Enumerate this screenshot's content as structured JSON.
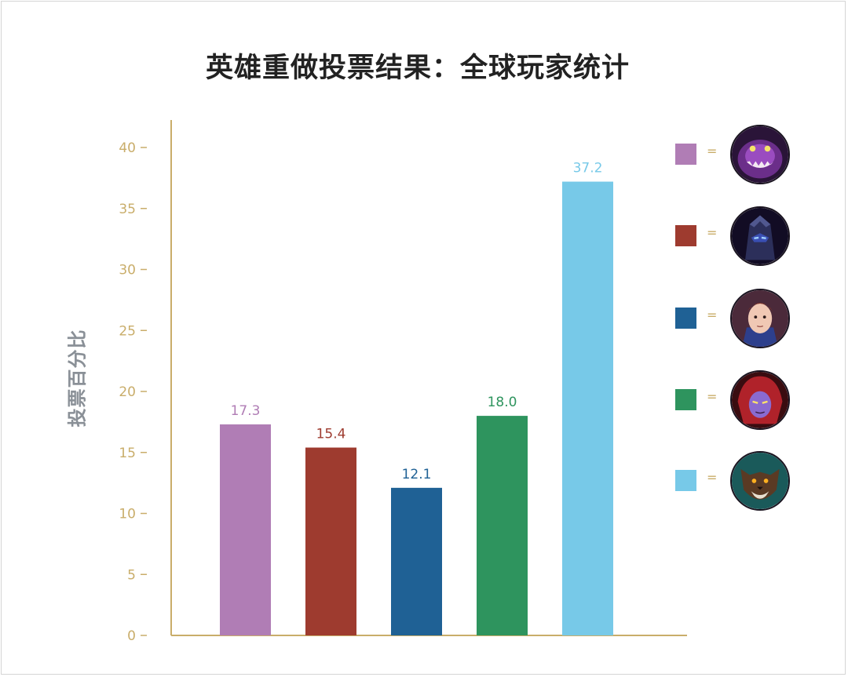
{
  "chart_data": {
    "type": "bar",
    "title": "英雄重做投票结果：全球玩家统计",
    "ylabel": "投票百分比",
    "xlabel": "",
    "ylim": [
      0,
      40
    ],
    "yticks": [
      0,
      5,
      10,
      15,
      20,
      25,
      30,
      35,
      40
    ],
    "grid": false,
    "legend_position": "right",
    "values": [
      17.3,
      15.4,
      12.1,
      18.0,
      37.2
    ],
    "value_labels": [
      "17.3",
      "15.4",
      "12.1",
      "18.0",
      "37.2"
    ],
    "colors": [
      "#b07db5",
      "#9e3b2f",
      "#1f6195",
      "#2e945e",
      "#77c9e8"
    ],
    "legend": [
      {
        "color": "#b07db5",
        "symbol": "=",
        "icon": "purple-monster-portrait-icon"
      },
      {
        "color": "#9e3b2f",
        "symbol": "=",
        "icon": "dark-armored-warrior-portrait-icon"
      },
      {
        "color": "#1f6195",
        "symbol": "=",
        "icon": "armored-knight-portrait-icon"
      },
      {
        "color": "#2e945e",
        "symbol": "=",
        "icon": "red-haired-mage-portrait-icon"
      },
      {
        "color": "#77c9e8",
        "symbol": "=",
        "icon": "werewolf-portrait-icon"
      }
    ],
    "axis_color": "#c9ad6a",
    "tick_label_color": "#c9ad6a"
  }
}
